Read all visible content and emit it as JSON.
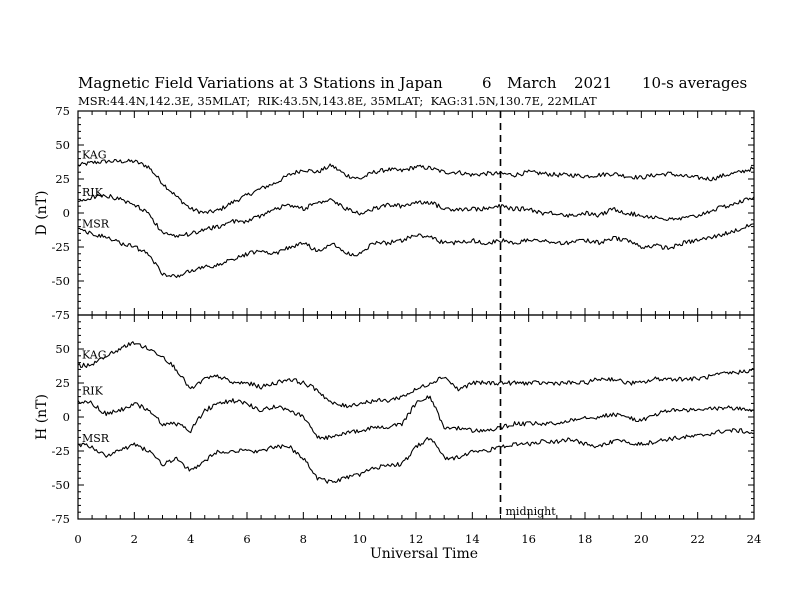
{
  "chart_data": {
    "type": "line",
    "title": "Magnetic Field Variations at 3 Stations in Japan",
    "date": {
      "day": "6",
      "month": "March",
      "year": "2021"
    },
    "averaging": "10-s averages",
    "subtitle": "MSR:44.4N,142.3E, 35MLAT;  RIK:43.5N,143.8E, 35MLAT;  KAG:31.5N,130.7E, 22MLAT",
    "xlabel": "Universal Time",
    "xlim": [
      0,
      24
    ],
    "x_ticks": [
      "0",
      "2",
      "4",
      "6",
      "8",
      "10",
      "12",
      "14",
      "16",
      "18",
      "20",
      "22",
      "24"
    ],
    "y_tick_values": [
      75,
      50,
      25,
      0,
      -25,
      -50,
      -75
    ],
    "y_ticks": [
      "75",
      "50",
      "25",
      "0",
      "-25",
      "-50",
      "-75"
    ],
    "marker": {
      "x": 15,
      "label": "midnight"
    },
    "x": [
      0,
      0.5,
      1,
      1.5,
      2,
      2.5,
      3,
      3.5,
      4,
      4.5,
      5,
      5.5,
      6,
      6.5,
      7,
      7.5,
      8,
      8.5,
      9,
      9.5,
      10,
      10.5,
      11,
      11.5,
      12,
      12.5,
      13,
      13.5,
      14,
      14.5,
      15,
      15.5,
      16,
      16.5,
      17,
      17.5,
      18,
      18.5,
      19,
      19.5,
      20,
      20.5,
      21,
      21.5,
      22,
      22.5,
      23,
      23.5,
      24
    ],
    "panels": [
      {
        "ylabel": "D (nT)",
        "ylim": [
          -75,
          75
        ],
        "series": [
          {
            "name": "KAG",
            "values": [
              35,
              37,
              38,
              38,
              38,
              34,
              22,
              12,
              3,
              0,
              2,
              8,
              13,
              18,
              22,
              28,
              32,
              30,
              35,
              28,
              25,
              30,
              32,
              31,
              34,
              33,
              30,
              30,
              28,
              29,
              29,
              28,
              30,
              29,
              28,
              28,
              27,
              28,
              29,
              27,
              26,
              28,
              29,
              27,
              26,
              25,
              28,
              30,
              33
            ]
          },
          {
            "name": "RIK",
            "values": [
              8,
              12,
              13,
              10,
              6,
              0,
              -15,
              -18,
              -15,
              -12,
              -10,
              -6,
              -6,
              -2,
              3,
              6,
              3,
              8,
              10,
              3,
              0,
              3,
              6,
              5,
              8,
              8,
              3,
              3,
              3,
              3,
              5,
              3,
              3,
              0,
              0,
              -2,
              0,
              -2,
              3,
              0,
              -2,
              -3,
              -5,
              -4,
              -2,
              2,
              5,
              8,
              12
            ]
          },
          {
            "name": "MSR",
            "values": [
              -12,
              -15,
              -18,
              -22,
              -25,
              -30,
              -45,
              -46,
              -43,
              -40,
              -38,
              -34,
              -30,
              -28,
              -30,
              -25,
              -22,
              -28,
              -22,
              -30,
              -30,
              -22,
              -22,
              -20,
              -16,
              -18,
              -22,
              -22,
              -20,
              -22,
              -20,
              -22,
              -20,
              -20,
              -22,
              -22,
              -20,
              -22,
              -18,
              -20,
              -25,
              -24,
              -26,
              -22,
              -20,
              -18,
              -15,
              -12,
              -8
            ]
          }
        ]
      },
      {
        "ylabel": "H (nT)",
        "ylim": [
          -75,
          75
        ],
        "series": [
          {
            "name": "KAG",
            "values": [
              38,
              38,
              45,
              50,
              55,
              50,
              45,
              35,
              20,
              28,
              30,
              25,
              25,
              22,
              25,
              28,
              25,
              20,
              10,
              8,
              10,
              12,
              12,
              15,
              20,
              25,
              30,
              20,
              25,
              25,
              25,
              25,
              25,
              25,
              25,
              25,
              25,
              28,
              28,
              25,
              25,
              28,
              28,
              28,
              28,
              30,
              32,
              33,
              35
            ]
          },
          {
            "name": "RIK",
            "values": [
              12,
              10,
              2,
              5,
              10,
              5,
              -5,
              -5,
              -10,
              5,
              10,
              12,
              10,
              5,
              8,
              5,
              0,
              -15,
              -15,
              -12,
              -10,
              -8,
              -8,
              -5,
              10,
              15,
              -8,
              -8,
              -10,
              -10,
              -8,
              -5,
              -5,
              -5,
              -5,
              -2,
              0,
              0,
              2,
              0,
              -3,
              2,
              5,
              5,
              5,
              6,
              7,
              6,
              5
            ]
          },
          {
            "name": "MSR",
            "values": [
              -20,
              -22,
              -28,
              -25,
              -20,
              -25,
              -35,
              -30,
              -40,
              -32,
              -25,
              -25,
              -25,
              -25,
              -22,
              -22,
              -30,
              -45,
              -48,
              -45,
              -42,
              -38,
              -35,
              -35,
              -22,
              -15,
              -30,
              -30,
              -25,
              -25,
              -22,
              -20,
              -20,
              -18,
              -18,
              -16,
              -20,
              -22,
              -18,
              -18,
              -20,
              -18,
              -16,
              -15,
              -14,
              -12,
              -10,
              -10,
              -12
            ]
          }
        ]
      }
    ]
  }
}
